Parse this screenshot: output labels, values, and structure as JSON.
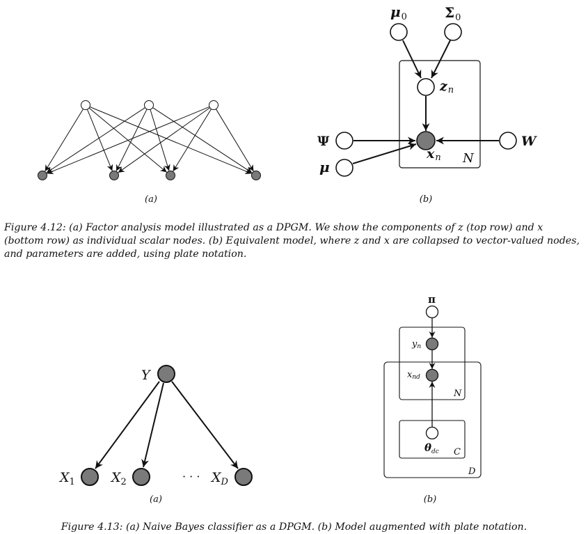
{
  "figure_4_12": {
    "panel_a": {
      "label": "(a)",
      "top_nodes": 3,
      "bottom_nodes": 4
    },
    "panel_b": {
      "label": "(b)",
      "mu0_symbol": "μ",
      "mu0_sub": "0",
      "sigma0_symbol": "Σ",
      "sigma0_sub": "0",
      "z_symbol": "z",
      "z_sub": "n",
      "x_symbol": "x",
      "x_sub": "n",
      "psi": "Ψ",
      "mu": "μ",
      "w": "W",
      "plate": "N"
    },
    "caption": "Figure 4.12: (a) Factor analysis model illustrated as a DPGM. We show the components of z (top row) and x (bottom row) as individual scalar nodes. (b) Equivalent model, where z and x are collapsed to vector-valued nodes, and parameters are added, using plate notation."
  },
  "figure_4_13": {
    "panel_a": {
      "label": "(a)",
      "y": "Y",
      "x1": "X",
      "x1_sub": "1",
      "x2": "X",
      "x2_sub": "2",
      "dots": "· · ·",
      "xd": "X",
      "xd_sub": "D"
    },
    "panel_b": {
      "label": "(b)",
      "pi": "π",
      "y_sym": "y",
      "y_sub": "n",
      "x_sym": "x",
      "x_sub": "nd",
      "theta_sym": "θ",
      "theta_sub": "dc",
      "plate_n": "N",
      "plate_c": "C",
      "plate_d": "D"
    },
    "caption": "Figure 4.13: (a) Naive Bayes classifier as a DPGM. (b) Model augmented with plate notation."
  },
  "colors": {
    "observed_fill": "#7a7a7a",
    "stroke": "#111111",
    "background": "#ffffff"
  }
}
